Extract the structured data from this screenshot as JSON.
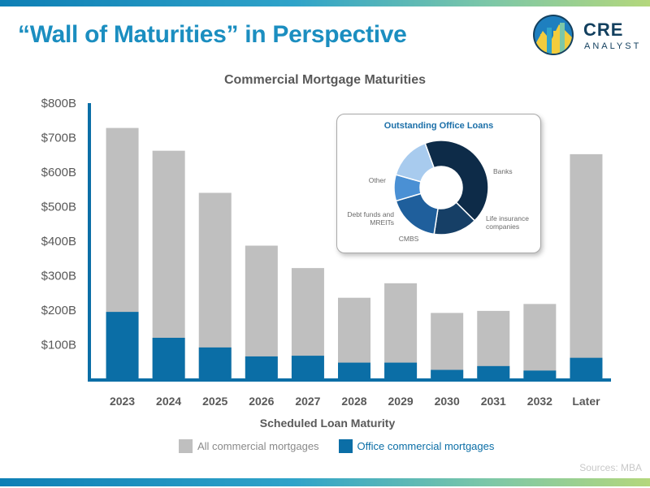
{
  "page_title": "“Wall of Maturities” in Perspective",
  "logo": {
    "name": "CRE",
    "sub": "ANALYST"
  },
  "sources": "Sources: MBA",
  "colors": {
    "all": "#bfbfbf",
    "office": "#0b6ea6",
    "axis": "#0b6ea6",
    "title": "#1b8ec0"
  },
  "chart_data": [
    {
      "type": "bar",
      "title": "Commercial Mortgage Maturities",
      "xlabel": "Scheduled Loan Maturity",
      "ylabel": "",
      "categories": [
        "2023",
        "2024",
        "2025",
        "2026",
        "2027",
        "2028",
        "2029",
        "2030",
        "2031",
        "2032",
        "Later"
      ],
      "yticks": [
        "$100B",
        "$200B",
        "$300B",
        "$400B",
        "$500B",
        "$600B",
        "$700B",
        "$800B"
      ],
      "ytick_values": [
        100,
        200,
        300,
        400,
        500,
        600,
        700,
        800
      ],
      "ylim": [
        0,
        800
      ],
      "grid": false,
      "legend_position": "bottom",
      "series": [
        {
          "name": "All commercial mortgages",
          "color": "#bfbfbf",
          "values": [
            728,
            662,
            540,
            387,
            322,
            236,
            278,
            192,
            198,
            218,
            652
          ]
        },
        {
          "name": "Office commercial mortgages",
          "color": "#0b6ea6",
          "values": [
            195,
            120,
            92,
            66,
            68,
            48,
            48,
            27,
            38,
            25,
            62
          ]
        }
      ]
    },
    {
      "type": "pie",
      "title": "Outstanding Office Loans",
      "hole": true,
      "labels": [
        "Banks",
        "Life insurance companies",
        "CMBS",
        "Debt funds and MREITs",
        "Other"
      ],
      "values": [
        43,
        15,
        18,
        9,
        15
      ],
      "colors": [
        "#0d2b48",
        "#163f66",
        "#1f5f9c",
        "#4a90d4",
        "#a8cbee"
      ]
    }
  ]
}
